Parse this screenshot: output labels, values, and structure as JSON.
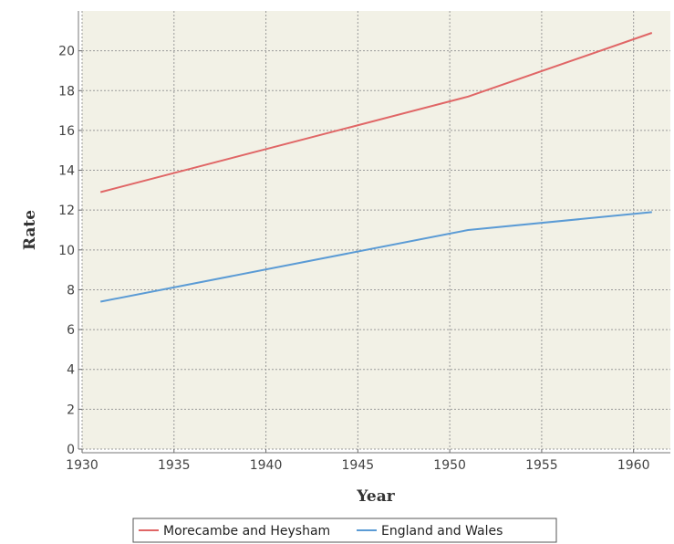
{
  "chart_data": {
    "type": "line",
    "title": "",
    "xlabel": "Year",
    "ylabel": "Rate",
    "xlim": [
      1930,
      1962
    ],
    "ylim": [
      0,
      22
    ],
    "x_ticks": [
      1930,
      1935,
      1940,
      1945,
      1950,
      1955,
      1960
    ],
    "y_ticks": [
      0,
      2,
      4,
      6,
      8,
      10,
      12,
      14,
      16,
      18,
      20
    ],
    "grid": true,
    "legend_position": "bottom",
    "series": [
      {
        "name": "Morecambe and Heysham",
        "color": "#e06666",
        "x": [
          1931,
          1951,
          1961
        ],
        "y": [
          12.9,
          17.7,
          20.9
        ]
      },
      {
        "name": "England and Wales",
        "color": "#5b9bd5",
        "x": [
          1931,
          1951,
          1961
        ],
        "y": [
          7.4,
          11.0,
          11.9
        ]
      }
    ]
  }
}
